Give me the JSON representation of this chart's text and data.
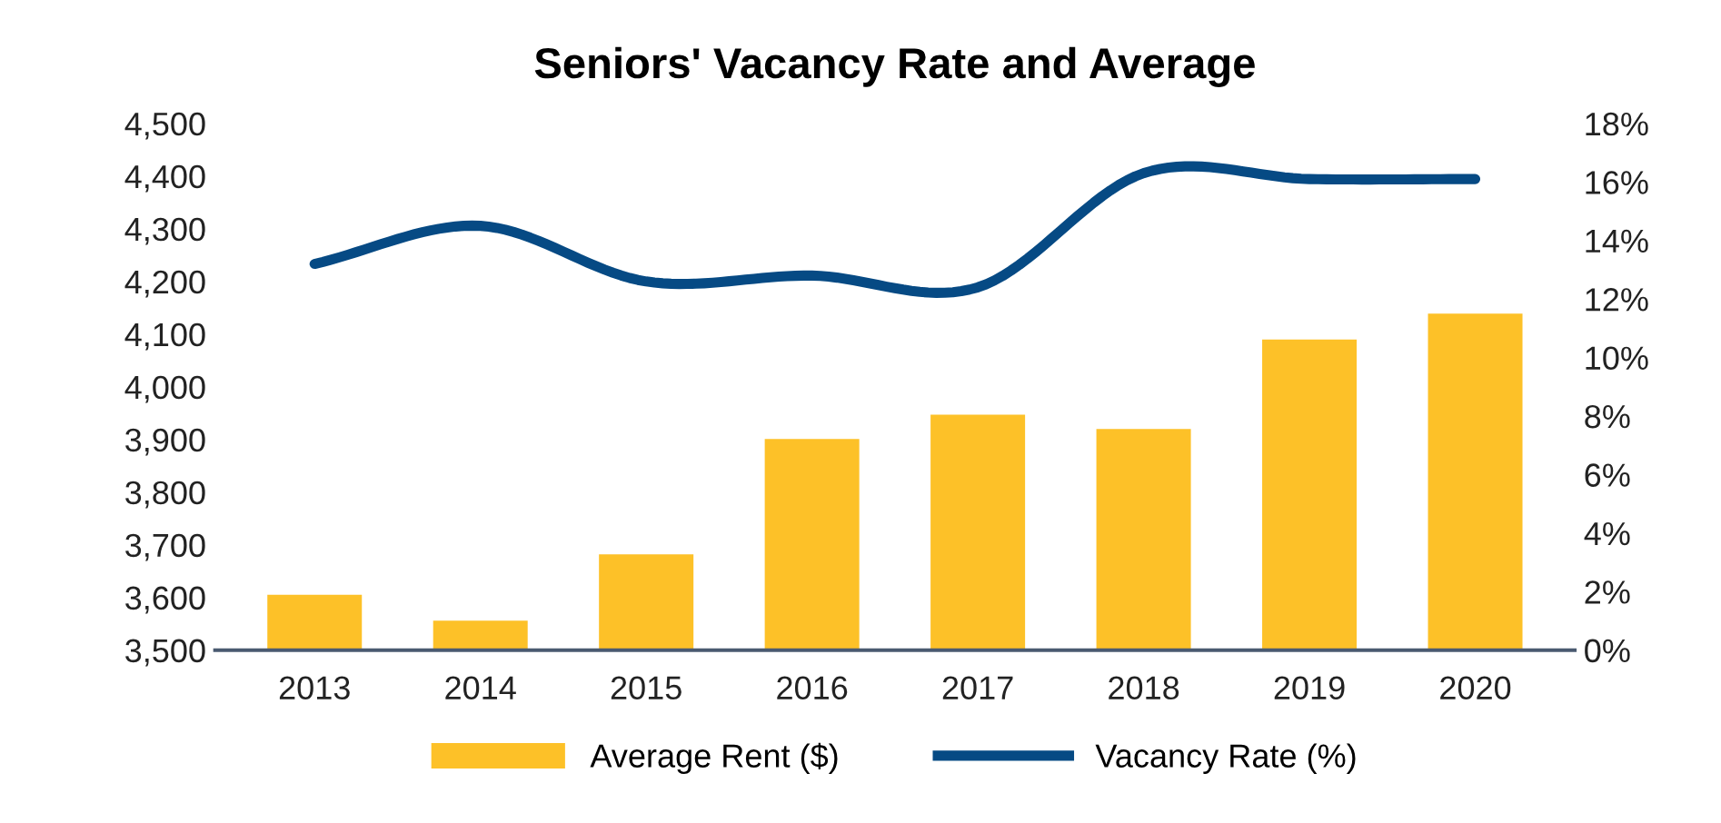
{
  "chart_data": {
    "type": "bar",
    "title": "Seniors' Vacancy Rate and Average",
    "categories": [
      "2013",
      "2014",
      "2015",
      "2016",
      "2017",
      "2018",
      "2019",
      "2020"
    ],
    "series": [
      {
        "name": "Average Rent ($)",
        "color": "#fdc128",
        "values": [
          3605,
          3556,
          3682,
          3901,
          3947,
          3920,
          4090,
          4139
        ]
      },
      {
        "name": "Vacancy Rate (%)",
        "type": "line",
        "axis": "y2",
        "color": "#064a84",
        "values": [
          13.2,
          14.5,
          12.6,
          12.8,
          12.4,
          16.3,
          16.1,
          16.1
        ]
      }
    ],
    "ylim": [
      3500,
      4500
    ],
    "yticks": [
      {
        "value": 3500,
        "label": "3,500"
      },
      {
        "value": 3600,
        "label": "3,600"
      },
      {
        "value": 3700,
        "label": "3,700"
      },
      {
        "value": 3800,
        "label": "3,800"
      },
      {
        "value": 3900,
        "label": "3,900"
      },
      {
        "value": 4000,
        "label": "4,000"
      },
      {
        "value": 4100,
        "label": "4,100"
      },
      {
        "value": 4200,
        "label": "4,200"
      },
      {
        "value": 4300,
        "label": "4,300"
      },
      {
        "value": 4400,
        "label": "4,400"
      },
      {
        "value": 4500,
        "label": "4,500"
      }
    ],
    "y2lim": [
      0,
      18
    ],
    "y2ticks": [
      {
        "value": 0,
        "label": "0%"
      },
      {
        "value": 2,
        "label": "2%"
      },
      {
        "value": 4,
        "label": "4%"
      },
      {
        "value": 6,
        "label": "6%"
      },
      {
        "value": 8,
        "label": "8%"
      },
      {
        "value": 10,
        "label": "10%"
      },
      {
        "value": 12,
        "label": "12%"
      },
      {
        "value": 14,
        "label": "14%"
      },
      {
        "value": 16,
        "label": "16%"
      },
      {
        "value": 18,
        "label": "18%"
      }
    ],
    "legend": "bottom",
    "grid": false
  }
}
